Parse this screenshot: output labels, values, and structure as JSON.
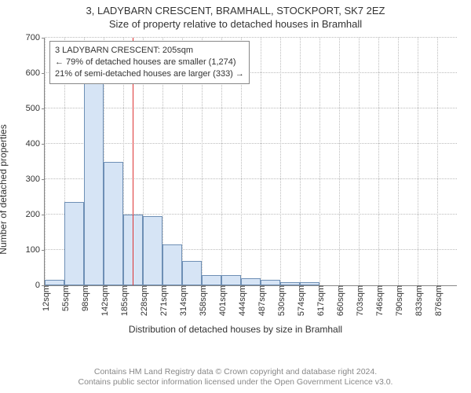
{
  "header": {
    "line1": "3, LADYBARN CRESCENT, BRAMHALL, STOCKPORT, SK7 2EZ",
    "line2": "Size of property relative to detached houses in Bramhall"
  },
  "chart": {
    "type": "histogram",
    "ylabel": "Number of detached properties",
    "xlabel": "Distribution of detached houses by size in Bramhall",
    "ylim": [
      0,
      700
    ],
    "ytick_step": 100,
    "yticks": [
      0,
      100,
      200,
      300,
      400,
      500,
      600,
      700
    ],
    "xticks": [
      "12sqm",
      "55sqm",
      "98sqm",
      "142sqm",
      "185sqm",
      "228sqm",
      "271sqm",
      "314sqm",
      "358sqm",
      "401sqm",
      "444sqm",
      "487sqm",
      "530sqm",
      "574sqm",
      "617sqm",
      "660sqm",
      "703sqm",
      "746sqm",
      "790sqm",
      "833sqm",
      "876sqm"
    ],
    "bars": {
      "values": [
        15,
        235,
        610,
        350,
        200,
        195,
        115,
        70,
        30,
        30,
        20,
        15,
        10,
        10,
        0,
        0,
        0,
        0,
        0,
        0,
        0
      ],
      "fill_color": "#d6e4f5",
      "border_color": "#6e8fb5",
      "bar_width_frac": 1.0
    },
    "marker": {
      "value_sqm": 205,
      "xmin_sqm": 12,
      "xmax_sqm": 919,
      "color": "#d33"
    },
    "annotation": {
      "lines": [
        "3 LADYBARN CRESCENT: 205sqm",
        "← 79% of detached houses are smaller (1,274)",
        "21% of semi-detached houses are larger (333) →"
      ],
      "border_color": "#888",
      "bg_color": "#ffffff"
    },
    "grid_color": "#bbbbbb",
    "axis_color": "#888888",
    "background_color": "#ffffff",
    "label_fontsize": 12,
    "tick_fontsize": 11
  },
  "footer": {
    "line1": "Contains HM Land Registry data © Crown copyright and database right 2024.",
    "line2": "Contains public sector information licensed under the Open Government Licence v3.0."
  }
}
